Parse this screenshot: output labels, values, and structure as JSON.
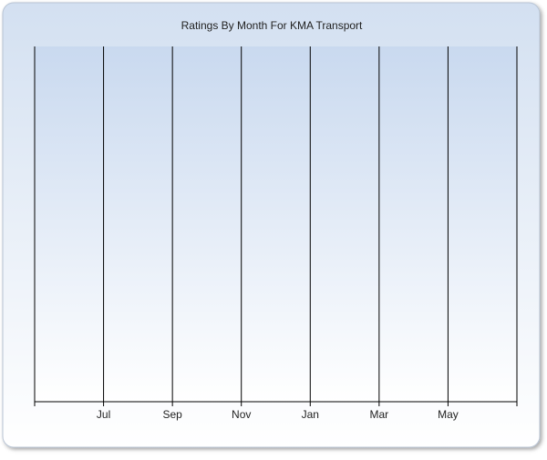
{
  "chart_data": {
    "type": "line",
    "title": "Ratings By Month For KMA Transport",
    "categories": [
      null,
      "Jul",
      "Sep",
      "Nov",
      "Jan",
      "Mar",
      "May",
      null
    ],
    "grid": true
  }
}
